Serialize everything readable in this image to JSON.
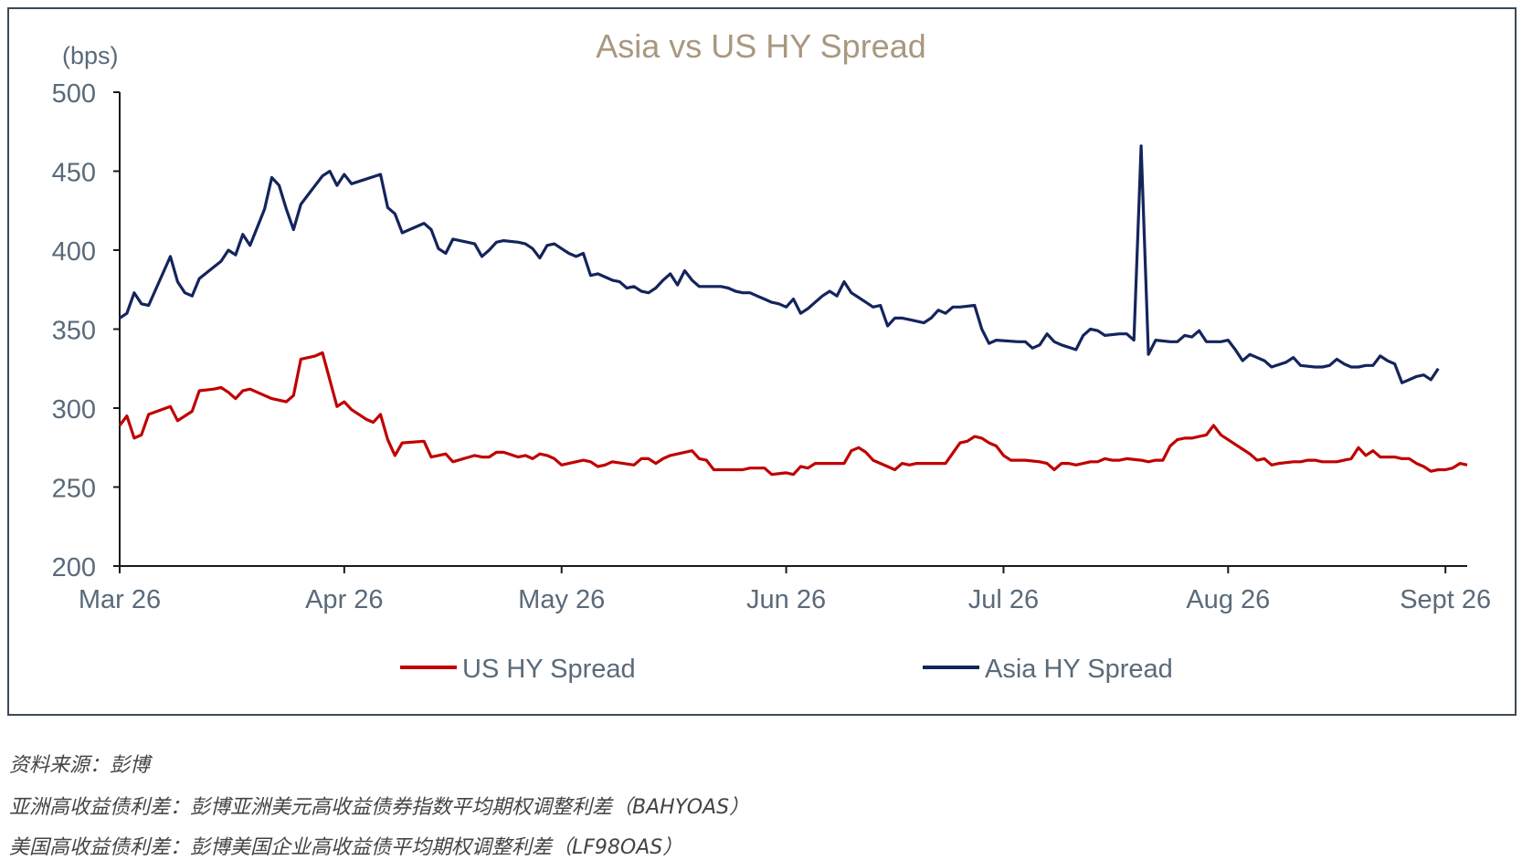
{
  "chart_data": {
    "type": "line",
    "title": "Asia vs US HY Spread",
    "ylabel": "(bps)",
    "xlabel": "",
    "ylim": [
      200,
      500
    ],
    "yticks": [
      "500",
      "450",
      "400",
      "350",
      "300",
      "250",
      "200"
    ],
    "x_tick_labels": [
      "Mar 26",
      "Apr 26",
      "May 26",
      "Jun 26",
      "Jul 26",
      "Aug 26",
      "Sept 26"
    ],
    "x_tick_days": [
      0,
      31,
      61,
      92,
      122,
      153,
      183
    ],
    "legend_position": "bottom",
    "grid": false,
    "series": [
      {
        "name": "US HY Spread",
        "color": "#c00000",
        "points": [
          [
            0,
            289
          ],
          [
            1,
            295
          ],
          [
            2,
            281
          ],
          [
            3,
            283
          ],
          [
            4,
            296
          ],
          [
            7,
            301
          ],
          [
            8,
            292
          ],
          [
            9,
            295
          ],
          [
            10,
            298
          ],
          [
            11,
            311
          ],
          [
            13,
            312
          ],
          [
            14,
            313
          ],
          [
            15,
            310
          ],
          [
            16,
            306
          ],
          [
            17,
            311
          ],
          [
            18,
            312
          ],
          [
            20,
            308
          ],
          [
            21,
            306
          ],
          [
            23,
            304
          ],
          [
            24,
            308
          ],
          [
            25,
            331
          ],
          [
            27,
            333
          ],
          [
            28,
            335
          ],
          [
            30,
            301
          ],
          [
            31,
            304
          ],
          [
            32,
            299
          ],
          [
            34,
            293
          ],
          [
            35,
            291
          ],
          [
            36,
            296
          ],
          [
            37,
            280
          ],
          [
            38,
            270
          ],
          [
            39,
            278
          ],
          [
            42,
            279
          ],
          [
            43,
            269
          ],
          [
            44,
            270
          ],
          [
            45,
            271
          ],
          [
            46,
            266
          ],
          [
            49,
            270
          ],
          [
            50,
            269
          ],
          [
            51,
            269
          ],
          [
            52,
            272
          ],
          [
            53,
            272
          ],
          [
            55,
            269
          ],
          [
            56,
            270
          ],
          [
            57,
            268
          ],
          [
            58,
            271
          ],
          [
            59,
            270
          ],
          [
            60,
            268
          ],
          [
            61,
            264
          ],
          [
            62,
            265
          ],
          [
            64,
            267
          ],
          [
            65,
            266
          ],
          [
            66,
            263
          ],
          [
            67,
            264
          ],
          [
            68,
            266
          ],
          [
            71,
            264
          ],
          [
            72,
            268
          ],
          [
            73,
            268
          ],
          [
            74,
            265
          ],
          [
            75,
            268
          ],
          [
            76,
            270
          ],
          [
            77,
            271
          ],
          [
            79,
            273
          ],
          [
            80,
            268
          ],
          [
            81,
            267
          ],
          [
            82,
            261
          ],
          [
            83,
            261
          ],
          [
            85,
            261
          ],
          [
            86,
            261
          ],
          [
            87,
            262
          ],
          [
            89,
            262
          ],
          [
            90,
            258
          ],
          [
            92,
            259
          ],
          [
            93,
            258
          ],
          [
            94,
            263
          ],
          [
            95,
            262
          ],
          [
            96,
            265
          ],
          [
            98,
            265
          ],
          [
            99,
            265
          ],
          [
            100,
            265
          ],
          [
            101,
            273
          ],
          [
            102,
            275
          ],
          [
            103,
            272
          ],
          [
            104,
            267
          ],
          [
            105,
            265
          ],
          [
            106,
            263
          ],
          [
            107,
            261
          ],
          [
            108,
            265
          ],
          [
            109,
            264
          ],
          [
            110,
            265
          ],
          [
            112,
            265
          ],
          [
            113,
            265
          ],
          [
            114,
            265
          ],
          [
            116,
            278
          ],
          [
            117,
            279
          ],
          [
            118,
            282
          ],
          [
            119,
            281
          ],
          [
            120,
            278
          ],
          [
            121,
            276
          ],
          [
            122,
            270
          ],
          [
            123,
            267
          ],
          [
            125,
            267
          ],
          [
            127,
            266
          ],
          [
            128,
            265
          ],
          [
            129,
            261
          ],
          [
            130,
            265
          ],
          [
            131,
            265
          ],
          [
            132,
            264
          ],
          [
            133,
            265
          ],
          [
            134,
            266
          ],
          [
            135,
            266
          ],
          [
            136,
            268
          ],
          [
            137,
            267
          ],
          [
            138,
            267
          ],
          [
            139,
            268
          ],
          [
            141,
            267
          ],
          [
            142,
            266
          ],
          [
            143,
            267
          ],
          [
            144,
            267
          ],
          [
            145,
            276
          ],
          [
            146,
            280
          ],
          [
            147,
            281
          ],
          [
            148,
            281
          ],
          [
            149,
            282
          ],
          [
            150,
            283
          ],
          [
            151,
            289
          ],
          [
            152,
            283
          ],
          [
            153,
            280
          ],
          [
            154,
            277
          ],
          [
            155,
            274
          ],
          [
            156,
            271
          ],
          [
            157,
            267
          ],
          [
            158,
            268
          ],
          [
            159,
            264
          ],
          [
            160,
            265
          ],
          [
            162,
            266
          ],
          [
            163,
            266
          ],
          [
            164,
            267
          ],
          [
            165,
            267
          ],
          [
            166,
            266
          ],
          [
            167,
            266
          ],
          [
            168,
            266
          ],
          [
            169,
            267
          ],
          [
            170,
            268
          ],
          [
            171,
            275
          ],
          [
            172,
            270
          ],
          [
            173,
            273
          ],
          [
            174,
            269
          ],
          [
            175,
            269
          ],
          [
            176,
            269
          ],
          [
            177,
            268
          ],
          [
            178,
            268
          ],
          [
            179,
            265
          ],
          [
            180,
            263
          ],
          [
            181,
            260
          ],
          [
            182,
            261
          ],
          [
            183,
            261
          ],
          [
            184,
            262
          ],
          [
            185,
            265
          ],
          [
            186,
            264
          ]
        ]
      },
      {
        "name": "Asia HY Spread",
        "color": "#14245c",
        "points": [
          [
            0,
            357
          ],
          [
            1,
            360
          ],
          [
            2,
            373
          ],
          [
            3,
            366
          ],
          [
            4,
            365
          ],
          [
            7,
            396
          ],
          [
            8,
            380
          ],
          [
            9,
            373
          ],
          [
            10,
            371
          ],
          [
            11,
            382
          ],
          [
            14,
            393
          ],
          [
            15,
            400
          ],
          [
            16,
            397
          ],
          [
            17,
            410
          ],
          [
            18,
            403
          ],
          [
            20,
            426
          ],
          [
            21,
            446
          ],
          [
            22,
            441
          ],
          [
            23,
            426
          ],
          [
            24,
            413
          ],
          [
            25,
            429
          ],
          [
            26,
            435
          ],
          [
            28,
            447
          ],
          [
            29,
            450
          ],
          [
            30,
            441
          ],
          [
            31,
            448
          ],
          [
            32,
            442
          ],
          [
            34,
            445
          ],
          [
            36,
            448
          ],
          [
            37,
            427
          ],
          [
            38,
            423
          ],
          [
            39,
            411
          ],
          [
            41,
            415
          ],
          [
            42,
            417
          ],
          [
            43,
            413
          ],
          [
            44,
            401
          ],
          [
            45,
            398
          ],
          [
            46,
            407
          ],
          [
            48,
            405
          ],
          [
            49,
            404
          ],
          [
            50,
            396
          ],
          [
            51,
            400
          ],
          [
            52,
            405
          ],
          [
            53,
            406
          ],
          [
            55,
            405
          ],
          [
            56,
            404
          ],
          [
            57,
            401
          ],
          [
            58,
            395
          ],
          [
            59,
            403
          ],
          [
            60,
            404
          ],
          [
            61,
            401
          ],
          [
            62,
            398
          ],
          [
            63,
            396
          ],
          [
            64,
            398
          ],
          [
            65,
            384
          ],
          [
            66,
            385
          ],
          [
            67,
            383
          ],
          [
            68,
            381
          ],
          [
            69,
            380
          ],
          [
            70,
            376
          ],
          [
            71,
            377
          ],
          [
            72,
            374
          ],
          [
            73,
            373
          ],
          [
            74,
            376
          ],
          [
            75,
            381
          ],
          [
            76,
            385
          ],
          [
            77,
            378
          ],
          [
            78,
            387
          ],
          [
            79,
            381
          ],
          [
            80,
            377
          ],
          [
            81,
            377
          ],
          [
            82,
            377
          ],
          [
            83,
            377
          ],
          [
            84,
            376
          ],
          [
            85,
            374
          ],
          [
            86,
            373
          ],
          [
            87,
            373
          ],
          [
            88,
            371
          ],
          [
            89,
            369
          ],
          [
            90,
            367
          ],
          [
            91,
            366
          ],
          [
            92,
            364
          ],
          [
            93,
            369
          ],
          [
            94,
            360
          ],
          [
            95,
            363
          ],
          [
            96,
            367
          ],
          [
            97,
            371
          ],
          [
            98,
            374
          ],
          [
            99,
            371
          ],
          [
            100,
            380
          ],
          [
            101,
            373
          ],
          [
            102,
            370
          ],
          [
            103,
            367
          ],
          [
            104,
            364
          ],
          [
            105,
            365
          ],
          [
            106,
            352
          ],
          [
            107,
            357
          ],
          [
            108,
            357
          ],
          [
            109,
            356
          ],
          [
            110,
            355
          ],
          [
            111,
            354
          ],
          [
            112,
            357
          ],
          [
            113,
            362
          ],
          [
            114,
            360
          ],
          [
            115,
            364
          ],
          [
            116,
            364
          ],
          [
            118,
            365
          ],
          [
            119,
            350
          ],
          [
            120,
            341
          ],
          [
            121,
            343
          ],
          [
            124,
            342
          ],
          [
            125,
            342
          ],
          [
            126,
            338
          ],
          [
            127,
            340
          ],
          [
            128,
            347
          ],
          [
            129,
            342
          ],
          [
            130,
            340
          ],
          [
            132,
            337
          ],
          [
            133,
            346
          ],
          [
            134,
            350
          ],
          [
            135,
            349
          ],
          [
            136,
            346
          ],
          [
            138,
            347
          ],
          [
            139,
            347
          ],
          [
            140,
            343
          ],
          [
            141,
            466
          ],
          [
            142,
            334
          ],
          [
            143,
            343
          ],
          [
            145,
            342
          ],
          [
            146,
            342
          ],
          [
            147,
            346
          ],
          [
            148,
            345
          ],
          [
            149,
            349
          ],
          [
            150,
            342
          ],
          [
            152,
            342
          ],
          [
            153,
            343
          ],
          [
            154,
            337
          ],
          [
            155,
            330
          ],
          [
            156,
            334
          ],
          [
            158,
            330
          ],
          [
            159,
            326
          ],
          [
            161,
            329
          ],
          [
            162,
            332
          ],
          [
            163,
            327
          ],
          [
            165,
            326
          ],
          [
            166,
            326
          ],
          [
            167,
            327
          ],
          [
            168,
            331
          ],
          [
            169,
            328
          ],
          [
            170,
            326
          ],
          [
            171,
            326
          ],
          [
            172,
            327
          ],
          [
            173,
            327
          ],
          [
            174,
            333
          ],
          [
            175,
            330
          ],
          [
            176,
            328
          ],
          [
            177,
            316
          ],
          [
            178,
            318
          ],
          [
            179,
            320
          ],
          [
            180,
            321
          ],
          [
            181,
            318
          ],
          [
            182,
            325
          ]
        ]
      }
    ]
  },
  "notes": [
    "资料来源：彭博",
    "亚洲高收益债利差：彭博亚洲美元高收益债券指数平均期权调整利差（BAHYOAS）",
    "美国高收益债利差：彭博美国企业高收益债平均期权调整利差（LF98OAS）"
  ]
}
